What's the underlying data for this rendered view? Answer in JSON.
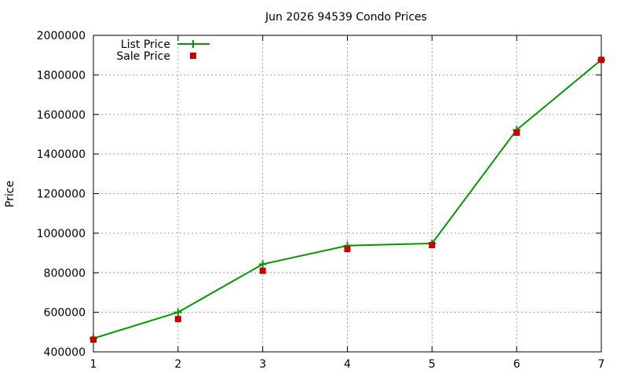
{
  "chart_data": {
    "type": "line",
    "title": "Jun 2026 94539 Condo Prices",
    "xlabel": "",
    "ylabel": "Price",
    "x": [
      1,
      2,
      3,
      4,
      5,
      6,
      7
    ],
    "xlim": [
      1,
      7
    ],
    "ylim": [
      400000,
      2000000
    ],
    "x_ticks": [
      1,
      2,
      3,
      4,
      5,
      6,
      7
    ],
    "y_ticks": [
      400000,
      600000,
      800000,
      1000000,
      1200000,
      1400000,
      1600000,
      1800000,
      2000000
    ],
    "grid": true,
    "legend_position": "top-left",
    "series": [
      {
        "name": "List Price",
        "style": "line-with-plus-markers",
        "color": "#009900",
        "values": [
          468000,
          600000,
          843000,
          937000,
          948000,
          1522000,
          1876000
        ]
      },
      {
        "name": "Sale Price",
        "style": "square-points",
        "color": "#cc0000",
        "values": [
          462000,
          566000,
          810000,
          920000,
          940000,
          1508000,
          1876000
        ]
      }
    ]
  }
}
